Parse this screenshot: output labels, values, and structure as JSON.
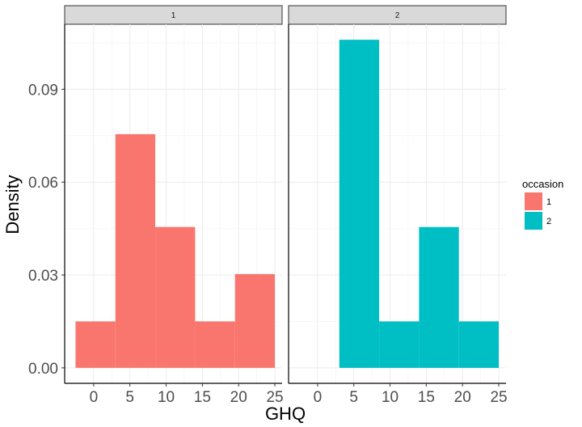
{
  "chart_data": {
    "type": "bar",
    "subtype": "faceted histogram",
    "xlabel": "GHQ",
    "ylabel": "Density",
    "xlim": [
      -4,
      26
    ],
    "ylim": [
      -0.005,
      0.111
    ],
    "x_ticks": [
      0,
      5,
      10,
      15,
      20,
      25
    ],
    "y_ticks": [
      0.0,
      0.03,
      0.06,
      0.09
    ],
    "y_tick_labels": [
      "0.00",
      "0.03",
      "0.06",
      "0.09"
    ],
    "grid": true,
    "legend": {
      "title": "occasion",
      "position": "right",
      "entries": [
        {
          "label": "1",
          "color": "#F8766D"
        },
        {
          "label": "2",
          "color": "#00BFC4"
        }
      ]
    },
    "facets": [
      {
        "label": "1",
        "color": "#F8766D",
        "bins": [
          {
            "x0": -2.5,
            "x1": 3.0,
            "density": 0.015
          },
          {
            "x0": 3.0,
            "x1": 8.5,
            "density": 0.0755
          },
          {
            "x0": 8.5,
            "x1": 14.0,
            "density": 0.0455
          },
          {
            "x0": 14.0,
            "x1": 19.5,
            "density": 0.015
          },
          {
            "x0": 19.5,
            "x1": 25.0,
            "density": 0.0303
          }
        ]
      },
      {
        "label": "2",
        "color": "#00BFC4",
        "bins": [
          {
            "x0": 3.0,
            "x1": 8.5,
            "density": 0.106
          },
          {
            "x0": 8.5,
            "x1": 14.0,
            "density": 0.015
          },
          {
            "x0": 14.0,
            "x1": 19.5,
            "density": 0.0455
          },
          {
            "x0": 19.5,
            "x1": 25.0,
            "density": 0.015
          }
        ]
      }
    ]
  }
}
